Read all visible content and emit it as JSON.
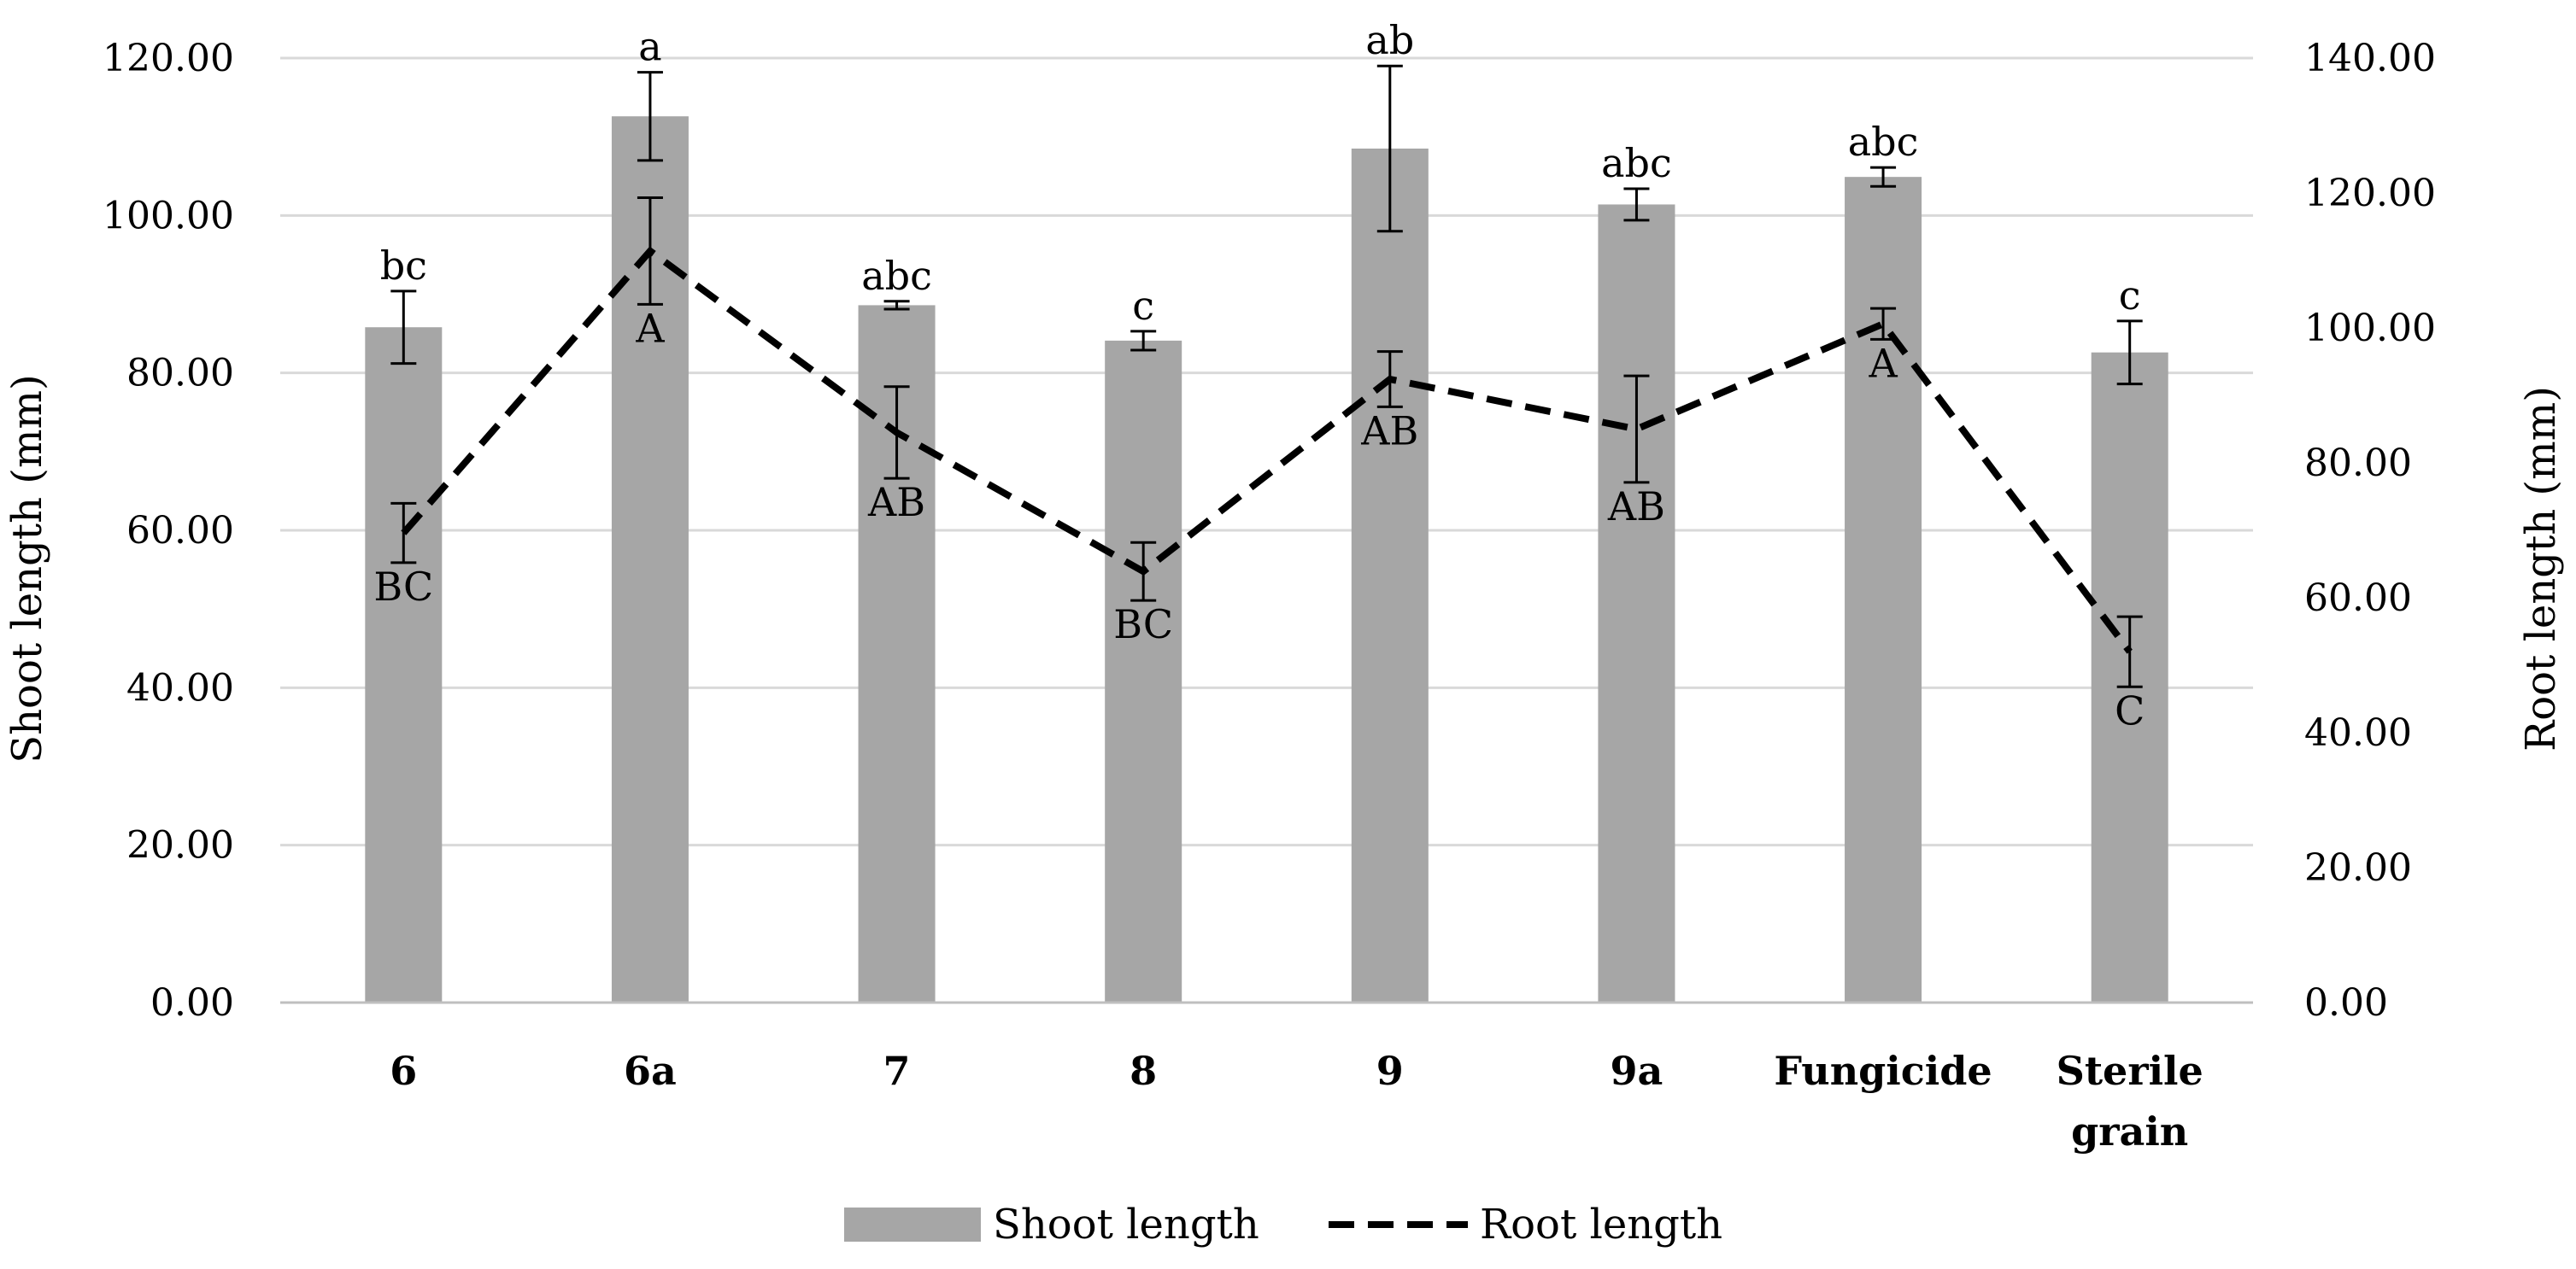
{
  "chart_data": {
    "type": "bar",
    "categories": [
      [
        "6"
      ],
      [
        "6a"
      ],
      [
        "7"
      ],
      [
        "8"
      ],
      [
        "9"
      ],
      [
        "9a"
      ],
      [
        "Fungicide"
      ],
      [
        "Sterile",
        "grain"
      ]
    ],
    "series": [
      {
        "name": "Shoot length",
        "kind": "bar",
        "axis": "left",
        "values": [
          85.8,
          112.6,
          88.6,
          84.1,
          108.5,
          101.4,
          104.9,
          82.6
        ],
        "error": [
          4.6,
          5.6,
          0.5,
          1.2,
          10.5,
          2.0,
          1.2,
          4.0
        ],
        "labels": [
          "bc",
          "a",
          "abc",
          "c",
          "ab",
          "abc",
          "abc",
          "c"
        ]
      },
      {
        "name": "Root length",
        "kind": "line",
        "style": "dashed",
        "axis": "right",
        "values": [
          69.6,
          111.4,
          84.5,
          63.9,
          92.4,
          85.0,
          100.6,
          52.0
        ],
        "error": [
          4.4,
          7.9,
          6.8,
          4.3,
          4.1,
          7.9,
          2.3,
          5.2
        ],
        "labels": [
          "BC",
          "A",
          "AB",
          "BC",
          "AB",
          "AB",
          "A",
          "C"
        ]
      }
    ],
    "ylabel": "Shoot length (mm)",
    "y2label": "Root length (mm)",
    "ylim": [
      0,
      120
    ],
    "y2lim": [
      0,
      140
    ],
    "yticks": [
      "0.00",
      "20.00",
      "40.00",
      "60.00",
      "80.00",
      "100.00",
      "120.00"
    ],
    "y2ticks": [
      "0.00",
      "20.00",
      "40.00",
      "60.00",
      "80.00",
      "100.00",
      "120.00",
      "140.00"
    ],
    "grid": true,
    "legend": "bottom",
    "bar_color": "#a6a6a6",
    "grid_color": "#d9d9d9",
    "line_color": "#000000"
  }
}
